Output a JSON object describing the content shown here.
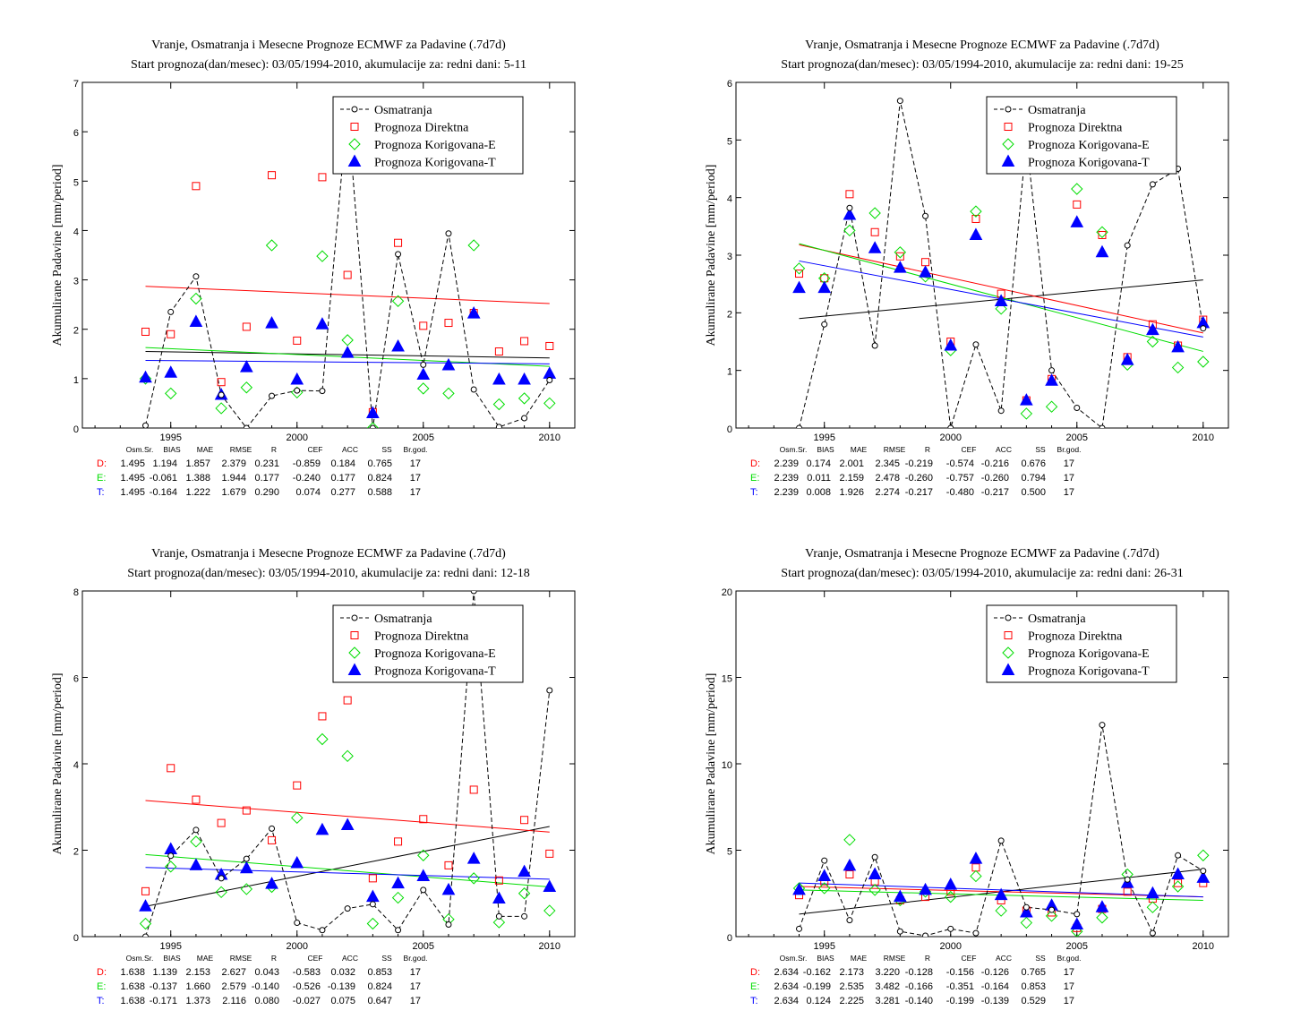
{
  "colors": {
    "observed": "#000000",
    "direct": "#ff0000",
    "corrected_e": "#00dd00",
    "corrected_t": "#0000ff"
  },
  "stats_header": [
    "Osm.Sr.",
    "BIAS",
    "MAE",
    "RMSE",
    "R",
    "CEF",
    "ACC",
    "SS",
    "Br.god."
  ],
  "chart_data": [
    {
      "type": "scatter",
      "title": "Vranje, Osmatranja i Mesecne Prognoze ECMWF za Padavine (.7d7d)",
      "subtitle": "Start prognoza(dan/mesec): 03/05/1994-2010, akumulacije za: redni dani: 5-11",
      "ylabel": "Akumulirane Padavine [mm/period]",
      "xlim": [
        1991.5,
        2011
      ],
      "ylim": [
        0,
        7
      ],
      "xticks": [
        1995,
        2000,
        2005,
        2010
      ],
      "yticks": [
        0,
        1,
        2,
        3,
        4,
        5,
        6,
        7
      ],
      "legend_position": "top-right",
      "legend": [
        "Osmatranja",
        "Prognoza Direktna",
        "Prognoza Korigovana-E",
        "Prognoza Korigovana-T"
      ],
      "x": [
        1994,
        1995,
        1996,
        1997,
        1998,
        1999,
        2000,
        2001,
        2002,
        2003,
        2004,
        2005,
        2006,
        2007,
        2008,
        2009,
        2010
      ],
      "series": [
        {
          "name": "Osmatranja",
          "values": [
            0.05,
            2.35,
            3.07,
            0.67,
            0.0,
            0.65,
            0.76,
            0.75,
            6.48,
            0.0,
            3.52,
            1.28,
            3.94,
            0.78,
            0.02,
            0.2,
            0.97
          ]
        },
        {
          "name": "Prognoza Direktna",
          "values": [
            1.95,
            1.9,
            4.9,
            0.93,
            2.05,
            5.12,
            1.77,
            5.08,
            3.1,
            0.32,
            3.75,
            2.07,
            2.13,
            2.33,
            1.55,
            1.76,
            1.66
          ]
        },
        {
          "name": "Prognoza Korigovana-E",
          "values": [
            1.0,
            0.7,
            2.62,
            0.4,
            0.82,
            3.7,
            0.72,
            3.48,
            1.78,
            0.0,
            2.57,
            0.8,
            0.7,
            3.7,
            0.48,
            0.6,
            0.5
          ]
        },
        {
          "name": "Prognoza Korigovana-T",
          "values": [
            1.02,
            1.12,
            2.15,
            0.67,
            1.23,
            2.12,
            0.98,
            2.1,
            1.52,
            0.3,
            1.65,
            1.08,
            1.27,
            2.32,
            0.98,
            0.98,
            1.1
          ]
        }
      ],
      "trend_lines": {
        "Osmatranja": [
          1.55,
          1.42
        ],
        "Prognoza Direktna": [
          2.87,
          2.52
        ],
        "Prognoza Korigovana-E": [
          1.63,
          1.25
        ],
        "Prognoza Korigovana-T": [
          1.37,
          1.3
        ]
      },
      "stats": [
        {
          "label": "D:",
          "values": [
            "1.495",
            "1.194",
            "1.857",
            "2.379",
            "0.231",
            "-0.859",
            "0.184",
            "0.765",
            "17"
          ]
        },
        {
          "label": "E:",
          "values": [
            "1.495",
            "-0.061",
            "1.388",
            "1.944",
            "0.177",
            "-0.240",
            "0.177",
            "0.824",
            "17"
          ]
        },
        {
          "label": "T:",
          "values": [
            "1.495",
            "-0.164",
            "1.222",
            "1.679",
            "0.290",
            "0.074",
            "0.277",
            "0.588",
            "17"
          ]
        }
      ]
    },
    {
      "type": "scatter",
      "title": "Vranje, Osmatranja i Mesecne Prognoze ECMWF za Padavine (.7d7d)",
      "subtitle": "Start prognoza(dan/mesec): 03/05/1994-2010, akumulacije za: redni dani: 19-25",
      "ylabel": "Akumulirane Padavine [mm/period]",
      "xlim": [
        1991.5,
        2011
      ],
      "ylim": [
        0,
        6
      ],
      "xticks": [
        1995,
        2000,
        2005,
        2010
      ],
      "yticks": [
        0,
        1,
        2,
        3,
        4,
        5,
        6
      ],
      "legend_position": "top-right",
      "legend": [
        "Osmatranja",
        "Prognoza Direktna",
        "Prognoza Korigovana-E",
        "Prognoza Korigovana-T"
      ],
      "x": [
        1994,
        1995,
        1996,
        1997,
        1998,
        1999,
        2000,
        2001,
        2002,
        2003,
        2004,
        2005,
        2006,
        2007,
        2008,
        2009,
        2010
      ],
      "series": [
        {
          "name": "Osmatranja",
          "values": [
            0.0,
            1.8,
            3.82,
            1.43,
            5.68,
            3.68,
            0.0,
            1.45,
            0.3,
            5.0,
            1.0,
            0.35,
            0.0,
            3.17,
            4.23,
            4.5,
            1.73
          ]
        },
        {
          "name": "Prognoza Direktna",
          "values": [
            2.68,
            2.6,
            4.06,
            3.4,
            2.98,
            2.88,
            1.5,
            3.63,
            2.33,
            0.48,
            0.85,
            3.88,
            3.35,
            1.23,
            1.8,
            1.43,
            1.88
          ]
        },
        {
          "name": "Prognoza Korigovana-E",
          "values": [
            2.77,
            2.6,
            3.43,
            3.73,
            3.05,
            2.63,
            1.35,
            3.76,
            2.07,
            0.25,
            0.37,
            4.15,
            3.4,
            1.1,
            1.5,
            1.05,
            1.15
          ]
        },
        {
          "name": "Prognoza Korigovana-T",
          "values": [
            2.43,
            2.43,
            3.7,
            3.12,
            2.78,
            2.7,
            1.43,
            3.35,
            2.2,
            0.48,
            0.82,
            3.57,
            3.05,
            1.18,
            1.7,
            1.4,
            1.82
          ]
        }
      ],
      "trend_lines": {
        "Osmatranja": [
          1.9,
          2.57
        ],
        "Prognoza Direktna": [
          3.18,
          1.65
        ],
        "Prognoza Korigovana-E": [
          3.2,
          1.33
        ],
        "Prognoza Korigovana-T": [
          2.9,
          1.58
        ]
      },
      "stats": [
        {
          "label": "D:",
          "values": [
            "2.239",
            "0.174",
            "2.001",
            "2.345",
            "-0.219",
            "-0.574",
            "-0.216",
            "0.676",
            "17"
          ]
        },
        {
          "label": "E:",
          "values": [
            "2.239",
            "0.011",
            "2.159",
            "2.478",
            "-0.260",
            "-0.757",
            "-0.260",
            "0.794",
            "17"
          ]
        },
        {
          "label": "T:",
          "values": [
            "2.239",
            "0.008",
            "1.926",
            "2.274",
            "-0.217",
            "-0.480",
            "-0.217",
            "0.500",
            "17"
          ]
        }
      ]
    },
    {
      "type": "scatter",
      "title": "Vranje, Osmatranja i Mesecne Prognoze ECMWF za Padavine (.7d7d)",
      "subtitle": "Start prognoza(dan/mesec): 03/05/1994-2010, akumulacije za: redni dani: 12-18",
      "ylabel": "Akumulirane Padavine [mm/period]",
      "xlim": [
        1991.5,
        2011
      ],
      "ylim": [
        0,
        8
      ],
      "xticks": [
        1995,
        2000,
        2005,
        2010
      ],
      "yticks": [
        0,
        2,
        4,
        6,
        8
      ],
      "legend_position": "top-right",
      "legend": [
        "Osmatranja",
        "Prognoza Direktna",
        "Prognoza Korigovana-E",
        "Prognoza Korigovana-T"
      ],
      "x": [
        1994,
        1995,
        1996,
        1997,
        1998,
        1999,
        2000,
        2001,
        2002,
        2003,
        2004,
        2005,
        2006,
        2007,
        2008,
        2009,
        2010
      ],
      "series": [
        {
          "name": "Osmatranja",
          "values": [
            0.0,
            1.87,
            2.47,
            1.35,
            1.8,
            2.5,
            0.32,
            0.15,
            0.65,
            0.75,
            0.15,
            1.08,
            0.28,
            8.0,
            0.47,
            0.47,
            5.7
          ]
        },
        {
          "name": "Prognoza Direktna",
          "values": [
            1.05,
            3.9,
            3.17,
            2.63,
            2.92,
            2.23,
            3.5,
            5.1,
            5.47,
            1.35,
            2.2,
            2.72,
            1.65,
            3.4,
            1.3,
            2.7,
            1.92
          ]
        },
        {
          "name": "Prognoza Korigovana-E",
          "values": [
            0.3,
            1.62,
            2.2,
            1.03,
            1.1,
            1.15,
            2.75,
            4.57,
            4.18,
            0.3,
            0.9,
            1.88,
            0.4,
            1.35,
            0.33,
            1.0,
            0.6
          ]
        },
        {
          "name": "Prognoza Korigovana-T",
          "values": [
            0.7,
            2.02,
            1.65,
            1.43,
            1.58,
            1.22,
            1.7,
            2.47,
            2.58,
            0.92,
            1.23,
            1.4,
            1.08,
            1.8,
            0.88,
            1.5,
            1.15
          ]
        }
      ],
      "trend_lines": {
        "Osmatranja": [
          0.7,
          2.55
        ],
        "Prognoza Direktna": [
          3.15,
          2.42
        ],
        "Prognoza Korigovana-E": [
          1.9,
          1.15
        ],
        "Prognoza Korigovana-T": [
          1.6,
          1.33
        ]
      },
      "stats": [
        {
          "label": "D:",
          "values": [
            "1.638",
            "1.139",
            "2.153",
            "2.627",
            "0.043",
            "-0.583",
            "0.032",
            "0.853",
            "17"
          ]
        },
        {
          "label": "E:",
          "values": [
            "1.638",
            "-0.137",
            "1.660",
            "2.579",
            "-0.140",
            "-0.526",
            "-0.139",
            "0.824",
            "17"
          ]
        },
        {
          "label": "T:",
          "values": [
            "1.638",
            "-0.171",
            "1.373",
            "2.116",
            "0.080",
            "-0.027",
            "0.075",
            "0.647",
            "17"
          ]
        }
      ]
    },
    {
      "type": "scatter",
      "title": "Vranje, Osmatranja i Mesecne Prognoze ECMWF za Padavine (.7d7d)",
      "subtitle": "Start prognoza(dan/mesec): 03/05/1994-2010, akumulacije za: redni dani: 26-31",
      "ylabel": "Akumulirane Padavine [mm/period]",
      "xlim": [
        1991.5,
        2011
      ],
      "ylim": [
        0,
        20
      ],
      "xticks": [
        1995,
        2000,
        2005,
        2010
      ],
      "yticks": [
        0,
        5,
        10,
        15,
        20
      ],
      "legend_position": "top-right",
      "legend": [
        "Osmatranja",
        "Prognoza Direktna",
        "Prognoza Korigovana-E",
        "Prognoza Korigovana-T"
      ],
      "x": [
        1994,
        1995,
        1996,
        1997,
        1998,
        1999,
        2000,
        2001,
        2002,
        2003,
        2004,
        2005,
        2006,
        2007,
        2008,
        2009,
        2010
      ],
      "series": [
        {
          "name": "Osmatranja",
          "values": [
            0.45,
            4.4,
            0.95,
            4.6,
            0.3,
            0.05,
            0.45,
            0.2,
            5.55,
            1.7,
            1.55,
            1.3,
            12.25,
            3.3,
            0.2,
            4.7,
            3.8
          ]
        },
        {
          "name": "Prognoza Direktna",
          "values": [
            2.4,
            3.2,
            3.6,
            3.2,
            2.1,
            2.3,
            2.6,
            4.0,
            2.1,
            1.5,
            1.4,
            0.5,
            1.6,
            2.6,
            2.2,
            3.1,
            3.1
          ]
        },
        {
          "name": "Prognoza Korigovana-E",
          "values": [
            2.8,
            2.8,
            5.6,
            2.7,
            2.1,
            2.6,
            2.3,
            3.5,
            1.5,
            0.8,
            1.2,
            0.3,
            1.1,
            3.6,
            1.7,
            2.9,
            4.7
          ]
        },
        {
          "name": "Prognoza Korigovana-T",
          "values": [
            2.7,
            3.5,
            4.1,
            3.6,
            2.3,
            2.7,
            3.0,
            4.5,
            2.4,
            1.4,
            1.8,
            0.7,
            1.7,
            3.1,
            2.5,
            3.6,
            3.4
          ]
        }
      ],
      "trend_lines": {
        "Osmatranja": [
          1.3,
          3.9
        ],
        "Prognoza Direktna": [
          2.9,
          2.3
        ],
        "Prognoza Korigovana-E": [
          2.7,
          2.1
        ],
        "Prognoza Korigovana-T": [
          3.1,
          2.3
        ]
      },
      "stats": [
        {
          "label": "D:",
          "values": [
            "2.634",
            "-0.162",
            "2.173",
            "3.220",
            "-0.128",
            "-0.156",
            "-0.126",
            "0.765",
            "17"
          ]
        },
        {
          "label": "E:",
          "values": [
            "2.634",
            "-0.199",
            "2.535",
            "3.482",
            "-0.166",
            "-0.351",
            "-0.164",
            "0.853",
            "17"
          ]
        },
        {
          "label": "T:",
          "values": [
            "2.634",
            "0.124",
            "2.225",
            "3.281",
            "-0.140",
            "-0.199",
            "-0.139",
            "0.529",
            "17"
          ]
        }
      ]
    }
  ]
}
